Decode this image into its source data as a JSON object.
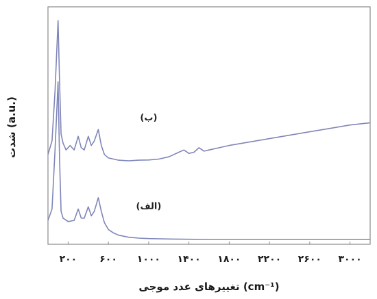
{
  "chart_data": {
    "type": "line",
    "xlabel": "تغییرهای عدد موجی (cm⁻¹)",
    "ylabel": "شدت (a.u.)",
    "x_ticks": [
      {
        "value": 200,
        "label": "۲۰۰"
      },
      {
        "value": 600,
        "label": "۶۰۰"
      },
      {
        "value": 1000,
        "label": "۱۰۰۰"
      },
      {
        "value": 1400,
        "label": "۱۴۰۰"
      },
      {
        "value": 1800,
        "label": "۱۸۰۰"
      },
      {
        "value": 2200,
        "label": "۲۲۰۰"
      },
      {
        "value": 2600,
        "label": "۲۶۰۰"
      },
      {
        "value": 3000,
        "label": "۳۰۰۰"
      }
    ],
    "xlim": [
      0,
      3200
    ],
    "ylim": [
      0,
      100
    ],
    "grid": false,
    "line_color": "#7f86b8",
    "series": [
      {
        "name": "(ب)",
        "x": [
          0,
          40,
          70,
          100,
          115,
          130,
          150,
          180,
          220,
          260,
          300,
          330,
          360,
          400,
          430,
          460,
          500,
          530,
          560,
          600,
          650,
          700,
          800,
          900,
          1000,
          1100,
          1200,
          1300,
          1350,
          1400,
          1450,
          1500,
          1550,
          1600,
          1700,
          1800,
          2000,
          2200,
          2400,
          2600,
          2800,
          3000,
          3200
        ],
        "y": [
          38,
          44,
          66,
          97,
          70,
          47,
          43,
          40,
          42,
          40,
          46,
          41,
          40,
          46,
          42,
          44,
          49,
          42,
          38,
          36.5,
          36,
          35.5,
          35.2,
          35.5,
          35.6,
          36,
          37,
          39,
          40,
          38.5,
          39,
          41,
          39.5,
          40,
          41,
          42,
          43.5,
          45,
          46.5,
          48,
          49.5,
          51,
          52
        ]
      },
      {
        "name": "(الف)",
        "x": [
          0,
          40,
          70,
          100,
          115,
          130,
          150,
          200,
          260,
          300,
          330,
          360,
          400,
          430,
          460,
          500,
          530,
          560,
          600,
          650,
          700,
          800,
          900,
          1000,
          1200,
          1400,
          1600,
          1800,
          2000,
          2400,
          2800,
          3200
        ],
        "y": [
          9,
          14,
          40,
          70,
          36,
          13,
          10,
          8.5,
          9,
          14,
          10,
          10,
          15,
          11,
          13,
          19,
          13,
          8,
          5,
          3.5,
          2.5,
          1.6,
          1.2,
          1,
          0.8,
          0.7,
          0.6,
          0.6,
          0.6,
          0.6,
          0.6,
          0.6
        ]
      }
    ],
    "annotations": [
      {
        "text": "(ب)",
        "x": 1000,
        "y": 53
      },
      {
        "text": "(الف)",
        "x": 1000,
        "y": 14
      }
    ]
  }
}
